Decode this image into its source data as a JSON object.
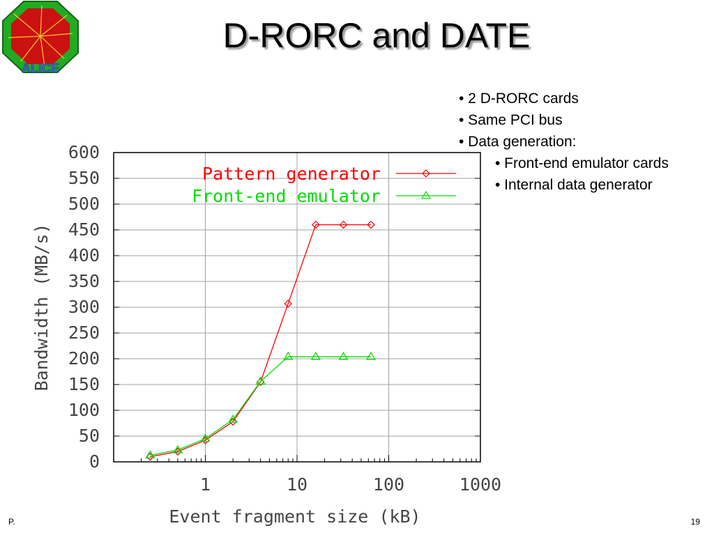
{
  "slide": {
    "title": "D-RORC and DATE",
    "footer_left": "P.",
    "page_number": "19",
    "logo_text": "ALICE"
  },
  "bullets": [
    {
      "text": "• 2 D-RORC cards",
      "level": 1
    },
    {
      "text": "• Same PCI bus",
      "level": 1
    },
    {
      "text": "• Data generation:",
      "level": 1
    },
    {
      "text": "• Front-end emulator cards",
      "level": 2
    },
    {
      "text": "• Internal data generator",
      "level": 2
    }
  ],
  "chart_data": {
    "type": "line",
    "title": "",
    "xlabel": "Event fragment size (kB)",
    "ylabel": "Bandwidth (MB/s)",
    "x_scale": "log",
    "xlim": [
      0.1,
      1000
    ],
    "ylim": [
      0,
      600
    ],
    "x_ticks": [
      1,
      10,
      100,
      1000
    ],
    "x_tick_labels": [
      "1",
      "10",
      "100",
      "1000"
    ],
    "y_ticks": [
      0,
      50,
      100,
      150,
      200,
      250,
      300,
      350,
      400,
      450,
      500,
      550,
      600
    ],
    "y_tick_labels": [
      "0",
      "50",
      "100",
      "150",
      "200",
      "250",
      "300",
      "350",
      "400",
      "450",
      "500",
      "550",
      "600"
    ],
    "grid": true,
    "legend_position": "top-right",
    "series": [
      {
        "name": "Pattern generator",
        "color": "#ff0000",
        "marker": "diamond",
        "x": [
          0.25,
          0.5,
          1,
          2,
          4,
          8,
          16,
          32,
          64
        ],
        "y": [
          10,
          20,
          42,
          78,
          155,
          307,
          460,
          460,
          460
        ]
      },
      {
        "name": "Front-end emulator",
        "color": "#00dd00",
        "marker": "triangle",
        "x": [
          0.25,
          0.5,
          1,
          2,
          4,
          8,
          16,
          32,
          64
        ],
        "y": [
          13,
          23,
          45,
          82,
          156,
          204,
          204,
          204,
          204
        ]
      }
    ]
  }
}
